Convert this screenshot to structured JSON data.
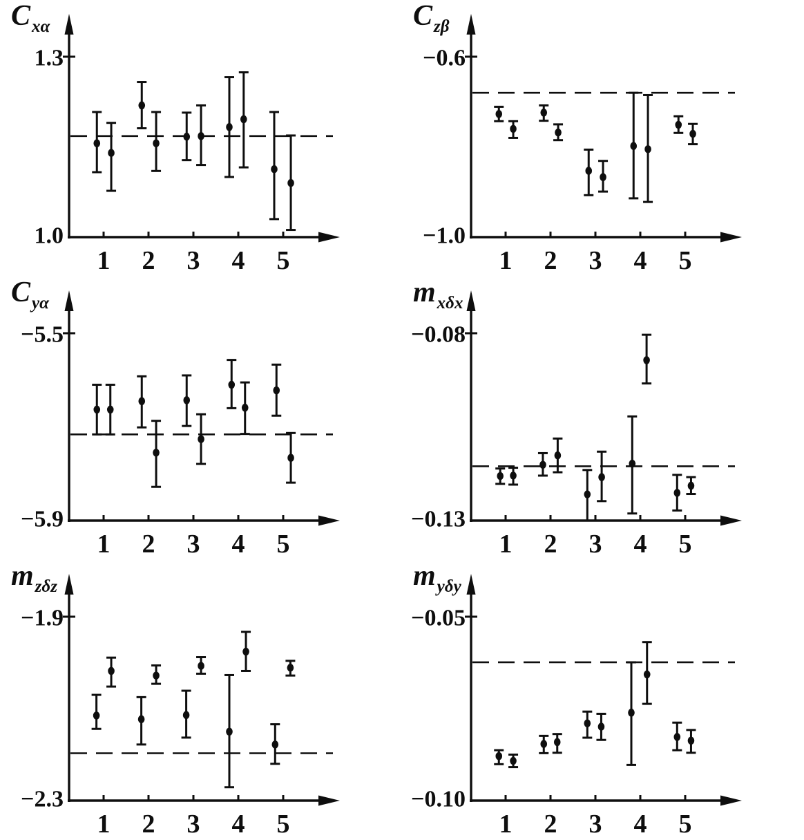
{
  "page": {
    "background": "#ffffff",
    "ink": "#0e0e0e"
  },
  "chart_data": [
    {
      "id": "Cxa",
      "type": "scatter",
      "ylabel": {
        "base": "C",
        "sub": "xα"
      },
      "yticks": [
        {
          "value": 1.3,
          "label": "1.3"
        },
        {
          "value": 1.0,
          "label": "1.0"
        }
      ],
      "xticks": [
        {
          "value": 1,
          "label": "1"
        },
        {
          "value": 2,
          "label": "2"
        },
        {
          "value": 3,
          "label": "3"
        },
        {
          "value": 4,
          "label": "4"
        },
        {
          "value": 5,
          "label": "5"
        }
      ],
      "dashed_y": 1.168,
      "legend": "none",
      "grid": false,
      "points": [
        {
          "x": 0.85,
          "y": 1.156,
          "lo": 1.108,
          "hi": 1.208
        },
        {
          "x": 1.17,
          "y": 1.14,
          "lo": 1.077,
          "hi": 1.19
        },
        {
          "x": 1.85,
          "y": 1.219,
          "lo": 1.181,
          "hi": 1.258
        },
        {
          "x": 2.17,
          "y": 1.156,
          "lo": 1.11,
          "hi": 1.208
        },
        {
          "x": 2.85,
          "y": 1.167,
          "lo": 1.128,
          "hi": 1.207
        },
        {
          "x": 3.17,
          "y": 1.168,
          "lo": 1.12,
          "hi": 1.219
        },
        {
          "x": 3.8,
          "y": 1.183,
          "lo": 1.1,
          "hi": 1.266
        },
        {
          "x": 4.12,
          "y": 1.196,
          "lo": 1.116,
          "hi": 1.274
        },
        {
          "x": 4.8,
          "y": 1.113,
          "lo": 1.03,
          "hi": 1.208
        },
        {
          "x": 5.17,
          "y": 1.09,
          "lo": 1.012,
          "hi": 1.169
        }
      ]
    },
    {
      "id": "Czb",
      "type": "scatter",
      "ylabel": {
        "base": "C",
        "sub": "zβ"
      },
      "yticks": [
        {
          "value": -0.6,
          "label": "−0.6"
        },
        {
          "value": -1.0,
          "label": "−1.0"
        }
      ],
      "xticks": [
        {
          "value": 1,
          "label": "1"
        },
        {
          "value": 2,
          "label": "2"
        },
        {
          "value": 3,
          "label": "3"
        },
        {
          "value": 4,
          "label": "4"
        },
        {
          "value": 5,
          "label": "5"
        }
      ],
      "dashed_y": -0.68,
      "legend": "none",
      "grid": false,
      "points": [
        {
          "x": 0.85,
          "y": -0.727,
          "lo": -0.743,
          "hi": -0.711
        },
        {
          "x": 1.17,
          "y": -0.76,
          "lo": -0.78,
          "hi": -0.743
        },
        {
          "x": 1.85,
          "y": -0.724,
          "lo": -0.742,
          "hi": -0.708
        },
        {
          "x": 2.17,
          "y": -0.768,
          "lo": -0.785,
          "hi": -0.75
        },
        {
          "x": 2.85,
          "y": -0.853,
          "lo": -0.907,
          "hi": -0.806
        },
        {
          "x": 3.17,
          "y": -0.867,
          "lo": -0.899,
          "hi": -0.831
        },
        {
          "x": 3.85,
          "y": -0.798,
          "lo": -0.914,
          "hi": -0.68
        },
        {
          "x": 4.17,
          "y": -0.805,
          "lo": -0.922,
          "hi": -0.685
        },
        {
          "x": 4.85,
          "y": -0.751,
          "lo": -0.769,
          "hi": -0.732
        },
        {
          "x": 5.17,
          "y": -0.771,
          "lo": -0.794,
          "hi": -0.749
        }
      ]
    },
    {
      "id": "Cya",
      "type": "scatter",
      "ylabel": {
        "base": "C",
        "sub": "yα"
      },
      "yticks": [
        {
          "value": -5.5,
          "label": "−5.5"
        },
        {
          "value": -5.9,
          "label": "−5.9"
        }
      ],
      "xticks": [
        {
          "value": 1,
          "label": "1"
        },
        {
          "value": 2,
          "label": "2"
        },
        {
          "value": 3,
          "label": "3"
        },
        {
          "value": 4,
          "label": "4"
        },
        {
          "value": 5,
          "label": "5"
        }
      ],
      "dashed_y": -5.716,
      "legend": "none",
      "grid": false,
      "points": [
        {
          "x": 0.85,
          "y": -5.663,
          "lo": -5.716,
          "hi": -5.61
        },
        {
          "x": 1.15,
          "y": -5.663,
          "lo": -5.716,
          "hi": -5.61
        },
        {
          "x": 1.85,
          "y": -5.645,
          "lo": -5.701,
          "hi": -5.592
        },
        {
          "x": 2.17,
          "y": -5.755,
          "lo": -5.828,
          "hi": -5.687
        },
        {
          "x": 2.85,
          "y": -5.643,
          "lo": -5.698,
          "hi": -5.59
        },
        {
          "x": 3.17,
          "y": -5.726,
          "lo": -5.779,
          "hi": -5.673
        },
        {
          "x": 3.85,
          "y": -5.61,
          "lo": -5.66,
          "hi": -5.557
        },
        {
          "x": 4.15,
          "y": -5.659,
          "lo": -5.715,
          "hi": -5.605
        },
        {
          "x": 4.85,
          "y": -5.622,
          "lo": -5.676,
          "hi": -5.567
        },
        {
          "x": 5.17,
          "y": -5.766,
          "lo": -5.819,
          "hi": -5.713
        }
      ]
    },
    {
      "id": "mxdx",
      "type": "scatter",
      "ylabel": {
        "base": "m",
        "sub": "xδx"
      },
      "yticks": [
        {
          "value": -0.08,
          "label": "−0.08"
        },
        {
          "value": -0.13,
          "label": "−0.13"
        }
      ],
      "xticks": [
        {
          "value": 1,
          "label": "1"
        },
        {
          "value": 2,
          "label": "2"
        },
        {
          "value": 3,
          "label": "3"
        },
        {
          "value": 4,
          "label": "4"
        },
        {
          "value": 5,
          "label": "5"
        }
      ],
      "dashed_y": -0.1155,
      "legend": "none",
      "grid": false,
      "points": [
        {
          "x": 0.88,
          "y": -0.1181,
          "lo": -0.1202,
          "hi": -0.1161
        },
        {
          "x": 1.17,
          "y": -0.118,
          "lo": -0.1204,
          "hi": -0.1159
        },
        {
          "x": 1.83,
          "y": -0.1151,
          "lo": -0.118,
          "hi": -0.112
        },
        {
          "x": 2.16,
          "y": -0.1126,
          "lo": -0.1171,
          "hi": -0.1081
        },
        {
          "x": 2.82,
          "y": -0.123,
          "lo": -0.13,
          "hi": -0.1165
        },
        {
          "x": 3.14,
          "y": -0.1184,
          "lo": -0.1248,
          "hi": -0.1116
        },
        {
          "x": 3.82,
          "y": -0.1148,
          "lo": -0.1281,
          "hi": -0.1022
        },
        {
          "x": 4.14,
          "y": -0.0872,
          "lo": -0.0934,
          "hi": -0.0804
        },
        {
          "x": 4.82,
          "y": -0.1226,
          "lo": -0.1273,
          "hi": -0.1178
        },
        {
          "x": 5.13,
          "y": -0.1207,
          "lo": -0.1229,
          "hi": -0.1184
        }
      ]
    },
    {
      "id": "mzdz",
      "type": "scatter",
      "ylabel": {
        "base": "m",
        "sub": "zδz"
      },
      "yticks": [
        {
          "value": -1.9,
          "label": "−1.9"
        },
        {
          "value": -2.3,
          "label": "−2.3"
        }
      ],
      "xticks": [
        {
          "value": 1,
          "label": "1"
        },
        {
          "value": 2,
          "label": "2"
        },
        {
          "value": 3,
          "label": "3"
        },
        {
          "value": 4,
          "label": "4"
        },
        {
          "value": 5,
          "label": "5"
        }
      ],
      "dashed_y": -2.197,
      "legend": "none",
      "grid": false,
      "points": [
        {
          "x": 0.84,
          "y": -2.115,
          "lo": -2.144,
          "hi": -2.07
        },
        {
          "x": 1.17,
          "y": -2.018,
          "lo": -2.052,
          "hi": -1.989
        },
        {
          "x": 1.84,
          "y": -2.123,
          "lo": -2.178,
          "hi": -2.075
        },
        {
          "x": 2.17,
          "y": -2.028,
          "lo": -2.046,
          "hi": -2.006
        },
        {
          "x": 2.84,
          "y": -2.114,
          "lo": -2.163,
          "hi": -2.061
        },
        {
          "x": 3.17,
          "y": -2.007,
          "lo": -2.024,
          "hi": -1.988
        },
        {
          "x": 3.8,
          "y": -2.15,
          "lo": -2.271,
          "hi": -2.027
        },
        {
          "x": 4.17,
          "y": -1.976,
          "lo": -2.018,
          "hi": -1.933
        },
        {
          "x": 4.82,
          "y": -2.178,
          "lo": -2.22,
          "hi": -2.134
        },
        {
          "x": 5.16,
          "y": -2.011,
          "lo": -2.028,
          "hi": -1.996
        }
      ]
    },
    {
      "id": "mydy",
      "type": "scatter",
      "ylabel": {
        "base": "m",
        "sub": "yδy"
      },
      "yticks": [
        {
          "value": -0.05,
          "label": "−0.05"
        },
        {
          "value": -0.1,
          "label": "−0.10"
        }
      ],
      "xticks": [
        {
          "value": 1,
          "label": "1"
        },
        {
          "value": 2,
          "label": "2"
        },
        {
          "value": 3,
          "label": "3"
        },
        {
          "value": 4,
          "label": "4"
        },
        {
          "value": 5,
          "label": "5"
        }
      ],
      "dashed_y": -0.0624,
      "legend": "none",
      "grid": false,
      "points": [
        {
          "x": 0.85,
          "y": -0.0879,
          "lo": -0.0901,
          "hi": -0.0863
        },
        {
          "x": 1.17,
          "y": -0.0892,
          "lo": -0.0909,
          "hi": -0.0875
        },
        {
          "x": 1.85,
          "y": -0.0846,
          "lo": -0.0871,
          "hi": -0.0824
        },
        {
          "x": 2.15,
          "y": -0.0841,
          "lo": -0.087,
          "hi": -0.0819
        },
        {
          "x": 2.82,
          "y": -0.079,
          "lo": -0.0829,
          "hi": -0.0758
        },
        {
          "x": 3.13,
          "y": -0.0799,
          "lo": -0.0835,
          "hi": -0.0764
        },
        {
          "x": 3.8,
          "y": -0.0761,
          "lo": -0.0903,
          "hi": -0.0624
        },
        {
          "x": 4.15,
          "y": -0.0657,
          "lo": -0.0737,
          "hi": -0.0569
        },
        {
          "x": 4.82,
          "y": -0.0827,
          "lo": -0.0863,
          "hi": -0.0788
        },
        {
          "x": 5.13,
          "y": -0.0837,
          "lo": -0.087,
          "hi": -0.0808
        }
      ]
    }
  ]
}
